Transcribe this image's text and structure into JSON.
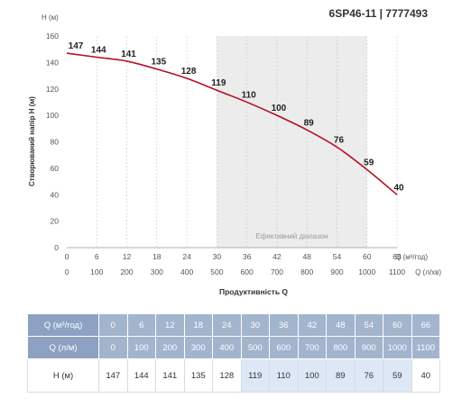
{
  "title": "6SP46-11 | 7777493",
  "chart_data": {
    "type": "line",
    "ylabel": "Створюваний напір Н (м)",
    "ylabel_unit": "Н (м)",
    "xlabel": "Продуктивність Q",
    "x_unit_m3h": "Q (м³/год)",
    "x_unit_lmin": "Q (л/хв)",
    "ylim": [
      0,
      160
    ],
    "yticks": [
      0,
      20,
      40,
      60,
      80,
      100,
      120,
      140,
      160
    ],
    "q_m3h": [
      0,
      6,
      12,
      18,
      24,
      30,
      36,
      42,
      48,
      54,
      60,
      66
    ],
    "q_lmin": [
      0,
      100,
      200,
      300,
      400,
      500,
      600,
      700,
      800,
      900,
      1000,
      1100
    ],
    "head_m": [
      147,
      144,
      141,
      135,
      128,
      119,
      110,
      100,
      89,
      76,
      59,
      40
    ],
    "efficient_range_label": "Ефективний діапазон",
    "efficient_range_m3h": [
      30,
      60
    ],
    "line_color": "#b30f24",
    "range_color": "#ececec"
  },
  "table": {
    "row_labels": [
      "Q (м³/год)",
      "Q (л/м)",
      "Н (м)"
    ],
    "efficient_color": "#dde8f7"
  }
}
